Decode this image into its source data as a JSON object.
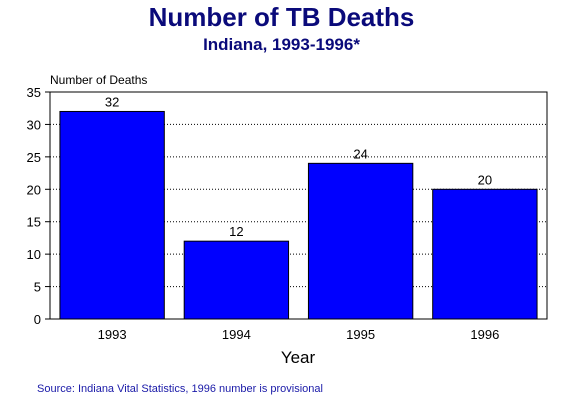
{
  "chart_data": {
    "type": "bar",
    "title": "Number of TB Deaths",
    "subtitle": "Indiana, 1993-1996*",
    "ylabel": "Number of Deaths",
    "xlabel": "Year",
    "categories": [
      "1993",
      "1994",
      "1995",
      "1996"
    ],
    "values": [
      32,
      12,
      24,
      20
    ],
    "data_labels": [
      "32",
      "12",
      "24",
      "20"
    ],
    "yticks": [
      "0",
      "5",
      "10",
      "15",
      "20",
      "25",
      "30",
      "35"
    ],
    "ylim": [
      0,
      35
    ],
    "grid": true,
    "bar_color": "#0000ff"
  },
  "footer": {
    "source": "Source:  Indiana Vital Statistics, 1996 number is provisional"
  }
}
